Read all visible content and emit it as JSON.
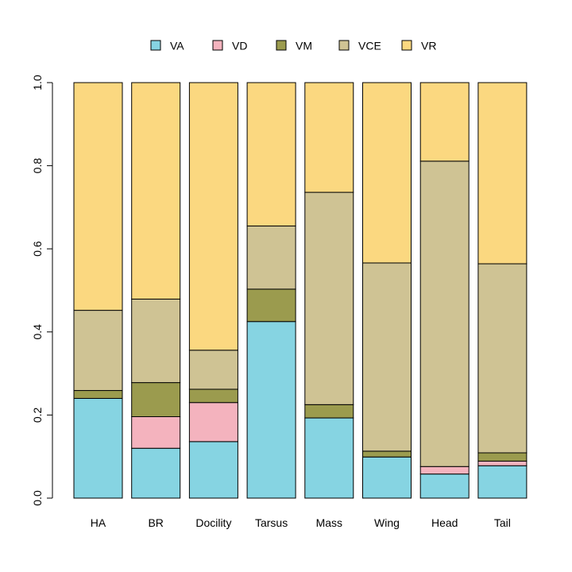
{
  "chart_data": {
    "type": "bar",
    "stacked": true,
    "categories": [
      "HA",
      "BR",
      "Docility",
      "Tarsus",
      "Mass",
      "Wing",
      "Head",
      "Tail"
    ],
    "ylim": [
      0,
      1
    ],
    "yticks": [
      "0.0",
      "0.2",
      "0.4",
      "0.6",
      "0.8",
      "1.0"
    ],
    "ytick_values": [
      0,
      0.2,
      0.4,
      0.6,
      0.8,
      1.0
    ],
    "legend_position": "top",
    "series": [
      {
        "name": "VA",
        "color": "#86D4E2",
        "values": [
          0.24,
          0.12,
          0.136,
          0.425,
          0.193,
          0.099,
          0.058,
          0.078
        ]
      },
      {
        "name": "VD",
        "color": "#F4B3BE",
        "values": [
          0.0,
          0.076,
          0.094,
          0.0,
          0.0,
          0.0,
          0.018,
          0.011
        ]
      },
      {
        "name": "VM",
        "color": "#9B9B4E",
        "values": [
          0.019,
          0.082,
          0.032,
          0.078,
          0.032,
          0.014,
          0.0,
          0.02
        ]
      },
      {
        "name": "VCE",
        "color": "#CFC394",
        "values": [
          0.193,
          0.201,
          0.094,
          0.152,
          0.511,
          0.453,
          0.735,
          0.455
        ]
      },
      {
        "name": "VR",
        "color": "#FBD880",
        "values": [
          0.548,
          0.521,
          0.644,
          0.345,
          0.264,
          0.434,
          0.189,
          0.436
        ]
      }
    ]
  }
}
